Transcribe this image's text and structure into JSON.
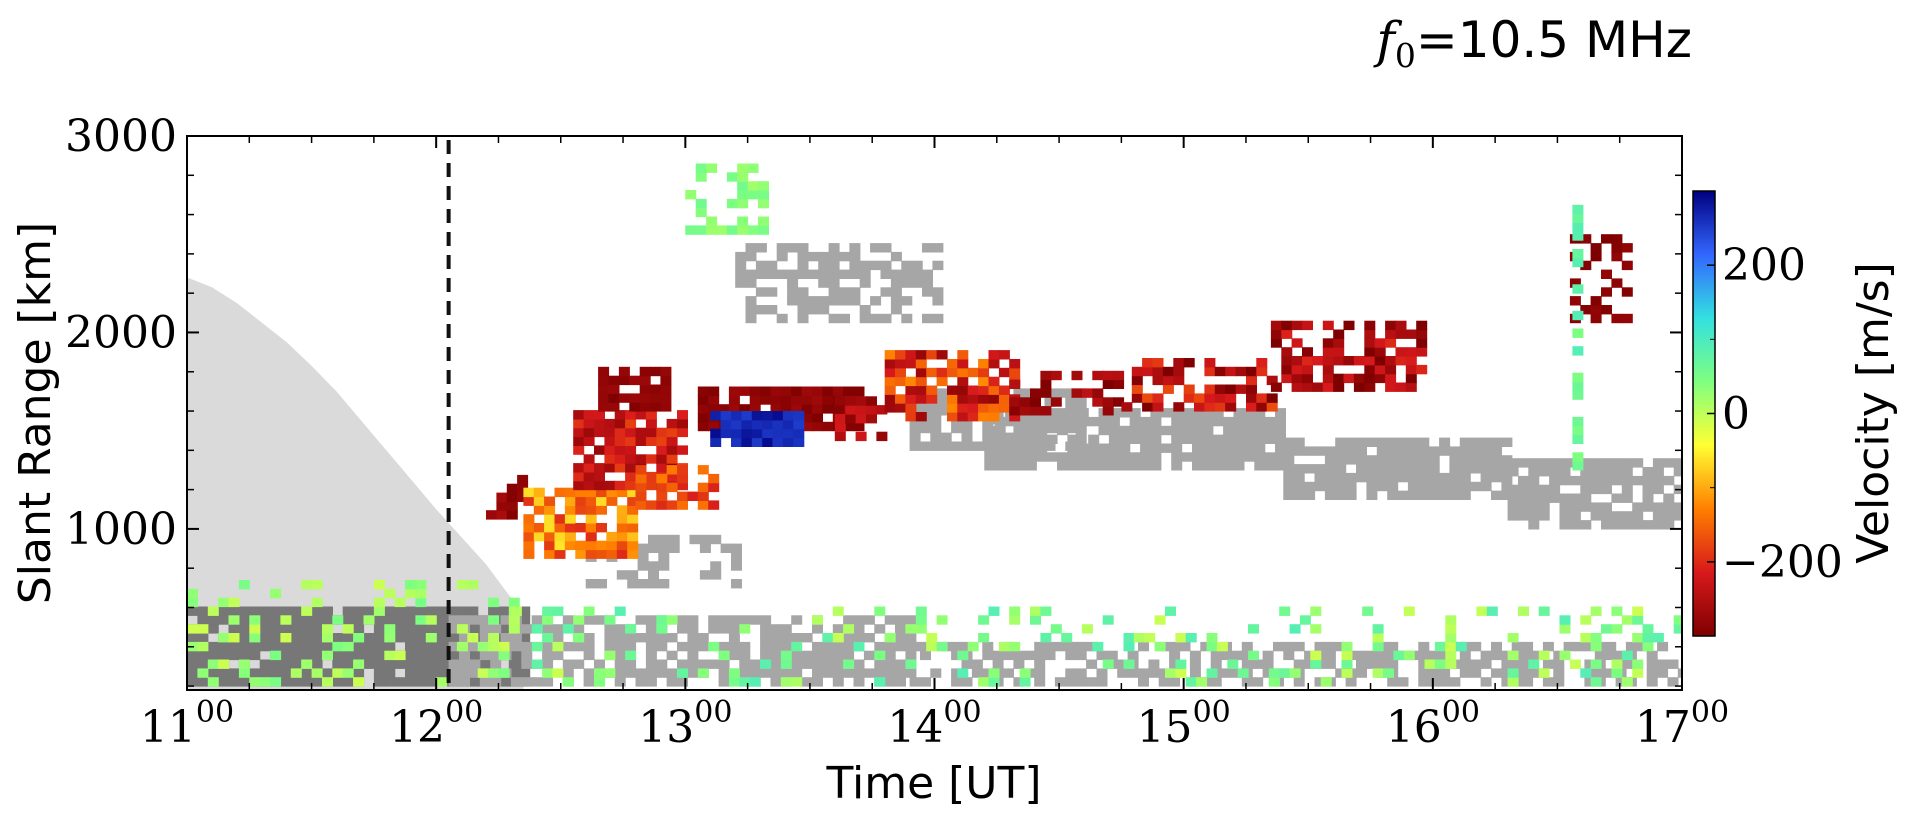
{
  "chart_data": {
    "type": "heatmap",
    "title_prefix": "f",
    "title_sub": "0",
    "title_value": "=10.5 MHz",
    "xlabel": "Time [UT]",
    "ylabel": "Slant Range [km]",
    "colorbar_label": "Velocity [m/s]",
    "xlim": [
      11.0,
      17.0
    ],
    "ylim": [
      180,
      3000
    ],
    "x_ticks": [
      {
        "value": 11,
        "main": "11",
        "sup": "00"
      },
      {
        "value": 12,
        "main": "12",
        "sup": "00"
      },
      {
        "value": 13,
        "main": "13",
        "sup": "00"
      },
      {
        "value": 14,
        "main": "14",
        "sup": "00"
      },
      {
        "value": 15,
        "main": "15",
        "sup": "00"
      },
      {
        "value": 16,
        "main": "16",
        "sup": "00"
      },
      {
        "value": 17,
        "main": "17",
        "sup": "00"
      }
    ],
    "y_ticks": [
      {
        "value": 1000,
        "label": "1000"
      },
      {
        "value": 2000,
        "label": "2000"
      },
      {
        "value": 3000,
        "label": "3000"
      }
    ],
    "colorbar": {
      "vmin": -300,
      "vmax": 300,
      "colormap": [
        "#7f0000",
        "#d7191c",
        "#ff7f00",
        "#ffff33",
        "#7fff7f",
        "#33e0e0",
        "#3366ff",
        "#000080"
      ],
      "ticks": [
        {
          "value": 200,
          "label": "200"
        },
        {
          "value": 0,
          "label": "0"
        },
        {
          "value": -200,
          "label": "−200"
        }
      ]
    },
    "vertical_marker": {
      "time": 12.05,
      "style": "dashed",
      "color": "#111111"
    },
    "colors": {
      "ground_scatter": "#a6a6a6",
      "ground_scatter_dense": "#777777",
      "skip_zone": "#dadada"
    },
    "shaded_region": {
      "description_type": "skip-zone-shading",
      "boundary": [
        [
          11.0,
          2280
        ],
        [
          11.1,
          2230
        ],
        [
          11.2,
          2150
        ],
        [
          11.3,
          2050
        ],
        [
          11.4,
          1950
        ],
        [
          11.5,
          1830
        ],
        [
          11.6,
          1700
        ],
        [
          11.7,
          1550
        ],
        [
          11.8,
          1400
        ],
        [
          11.9,
          1250
        ],
        [
          12.0,
          1100
        ],
        [
          12.1,
          960
        ],
        [
          12.2,
          820
        ],
        [
          12.3,
          650
        ],
        [
          12.35,
          550
        ]
      ]
    },
    "ground_scatter_bands": [
      {
        "t0": 11.0,
        "t1": 12.35,
        "r0": 200,
        "r1": 600,
        "color_key": "ground_scatter_dense",
        "density": 0.95
      },
      {
        "t0": 12.05,
        "t1": 13.9,
        "r0": 200,
        "r1": 520,
        "color_key": "ground_scatter",
        "density": 0.7
      },
      {
        "t0": 13.9,
        "t1": 17.0,
        "r0": 200,
        "r1": 420,
        "color_key": "ground_scatter",
        "density": 0.6
      },
      {
        "t0": 13.2,
        "t1": 14.0,
        "r0": 2050,
        "r1": 2450,
        "color_key": "ground_scatter",
        "density": 0.6
      },
      {
        "t0": 13.9,
        "t1": 14.6,
        "r0": 1400,
        "r1": 1700,
        "color_key": "ground_scatter",
        "density": 0.75
      },
      {
        "t0": 14.2,
        "t1": 15.4,
        "r0": 1300,
        "r1": 1600,
        "color_key": "ground_scatter",
        "density": 0.85
      },
      {
        "t0": 15.4,
        "t1": 16.3,
        "r0": 1150,
        "r1": 1450,
        "color_key": "ground_scatter",
        "density": 0.85
      },
      {
        "t0": 16.3,
        "t1": 17.0,
        "r0": 1000,
        "r1": 1350,
        "color_key": "ground_scatter",
        "density": 0.8
      },
      {
        "t0": 12.6,
        "t1": 13.2,
        "r0": 700,
        "r1": 950,
        "color_key": "ground_scatter",
        "density": 0.5
      }
    ],
    "velocity_blobs": [
      {
        "t0": 12.2,
        "t1": 12.35,
        "r0": 1050,
        "r1": 1250,
        "v": -280,
        "spread": 20,
        "density": 0.7
      },
      {
        "t0": 12.35,
        "t1": 12.8,
        "r0": 850,
        "r1": 1200,
        "v": -130,
        "spread": 70,
        "density": 0.75
      },
      {
        "t0": 12.55,
        "t1": 13.0,
        "r0": 1200,
        "r1": 1600,
        "v": -230,
        "spread": 50,
        "density": 0.85
      },
      {
        "t0": 12.65,
        "t1": 12.9,
        "r0": 1600,
        "r1": 1800,
        "v": -285,
        "spread": 15,
        "density": 0.8
      },
      {
        "t0": 12.8,
        "t1": 13.1,
        "r0": 1100,
        "r1": 1300,
        "v": -170,
        "spread": 40,
        "density": 0.6
      },
      {
        "t0": 13.05,
        "t1": 13.7,
        "r0": 1500,
        "r1": 1700,
        "v": -285,
        "spread": 15,
        "density": 0.95
      },
      {
        "t0": 13.1,
        "t1": 13.45,
        "r0": 1420,
        "r1": 1560,
        "v": 270,
        "spread": 20,
        "density": 0.95
      },
      {
        "t0": 13.6,
        "t1": 13.8,
        "r0": 1450,
        "r1": 1650,
        "v": -250,
        "spread": 40,
        "density": 0.6
      },
      {
        "t0": 13.8,
        "t1": 14.3,
        "r0": 1550,
        "r1": 1900,
        "v": -200,
        "spread": 80,
        "density": 0.65
      },
      {
        "t0": 14.3,
        "t1": 14.75,
        "r0": 1580,
        "r1": 1780,
        "v": -270,
        "spread": 40,
        "density": 0.55
      },
      {
        "t0": 14.75,
        "t1": 15.35,
        "r0": 1600,
        "r1": 1850,
        "v": -240,
        "spread": 70,
        "density": 0.6
      },
      {
        "t0": 15.35,
        "t1": 15.95,
        "r0": 1700,
        "r1": 2050,
        "v": -260,
        "spread": 60,
        "density": 0.65
      },
      {
        "t0": 16.55,
        "t1": 16.8,
        "r0": 2050,
        "r1": 2500,
        "v": -290,
        "spread": 10,
        "density": 0.35
      },
      {
        "t0": 11.0,
        "t1": 12.3,
        "r0": 200,
        "r1": 700,
        "v": 20,
        "spread": 30,
        "density": 0.22
      },
      {
        "t0": 12.3,
        "t1": 17.0,
        "r0": 200,
        "r1": 600,
        "v": 40,
        "spread": 50,
        "density": 0.18
      },
      {
        "t0": 13.0,
        "t1": 13.3,
        "r0": 2500,
        "r1": 2850,
        "v": 40,
        "spread": 20,
        "density": 0.45
      },
      {
        "t0": 16.56,
        "t1": 16.6,
        "r0": 1300,
        "r1": 2650,
        "v": 70,
        "spread": 25,
        "density": 0.6
      }
    ]
  }
}
